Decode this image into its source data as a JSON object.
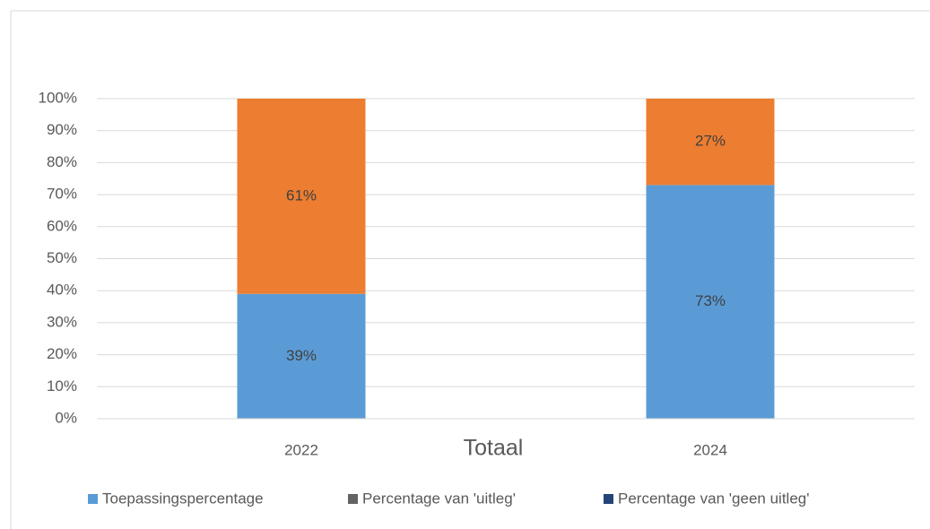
{
  "chart_data": {
    "type": "stacked_bar",
    "x_label": "Totaal",
    "categories": [
      "2022",
      "2024"
    ],
    "series": [
      {
        "name": "Toepassingspercentage",
        "color": "#5b9bd5",
        "values": [
          39,
          73
        ],
        "value_labels": [
          "39%",
          "73%"
        ]
      },
      {
        "color": "#ed7d31",
        "values": [
          61,
          27
        ],
        "value_labels": [
          "61%",
          "27%"
        ]
      },
      {
        "name": "Percentage van 'uitleg'",
        "color": "#636363",
        "values": [
          null,
          null
        ]
      },
      {
        "name": "Percentage van 'geen uitleg'",
        "color": "#264478",
        "values": [
          null,
          null
        ]
      }
    ],
    "ylim": [
      0,
      100
    ],
    "yticks": [
      {
        "value": 0,
        "label": "0%"
      },
      {
        "value": 10,
        "label": "10%"
      },
      {
        "value": 20,
        "label": "20%"
      },
      {
        "value": 30,
        "label": "30%"
      },
      {
        "value": 40,
        "label": "40%"
      },
      {
        "value": 50,
        "label": "50%"
      },
      {
        "value": 60,
        "label": "60%"
      },
      {
        "value": 70,
        "label": "70%"
      },
      {
        "value": 80,
        "label": "80%"
      },
      {
        "value": 90,
        "label": "90%"
      },
      {
        "value": 100,
        "label": "100%"
      }
    ],
    "grid": true,
    "legend": "bottom"
  }
}
